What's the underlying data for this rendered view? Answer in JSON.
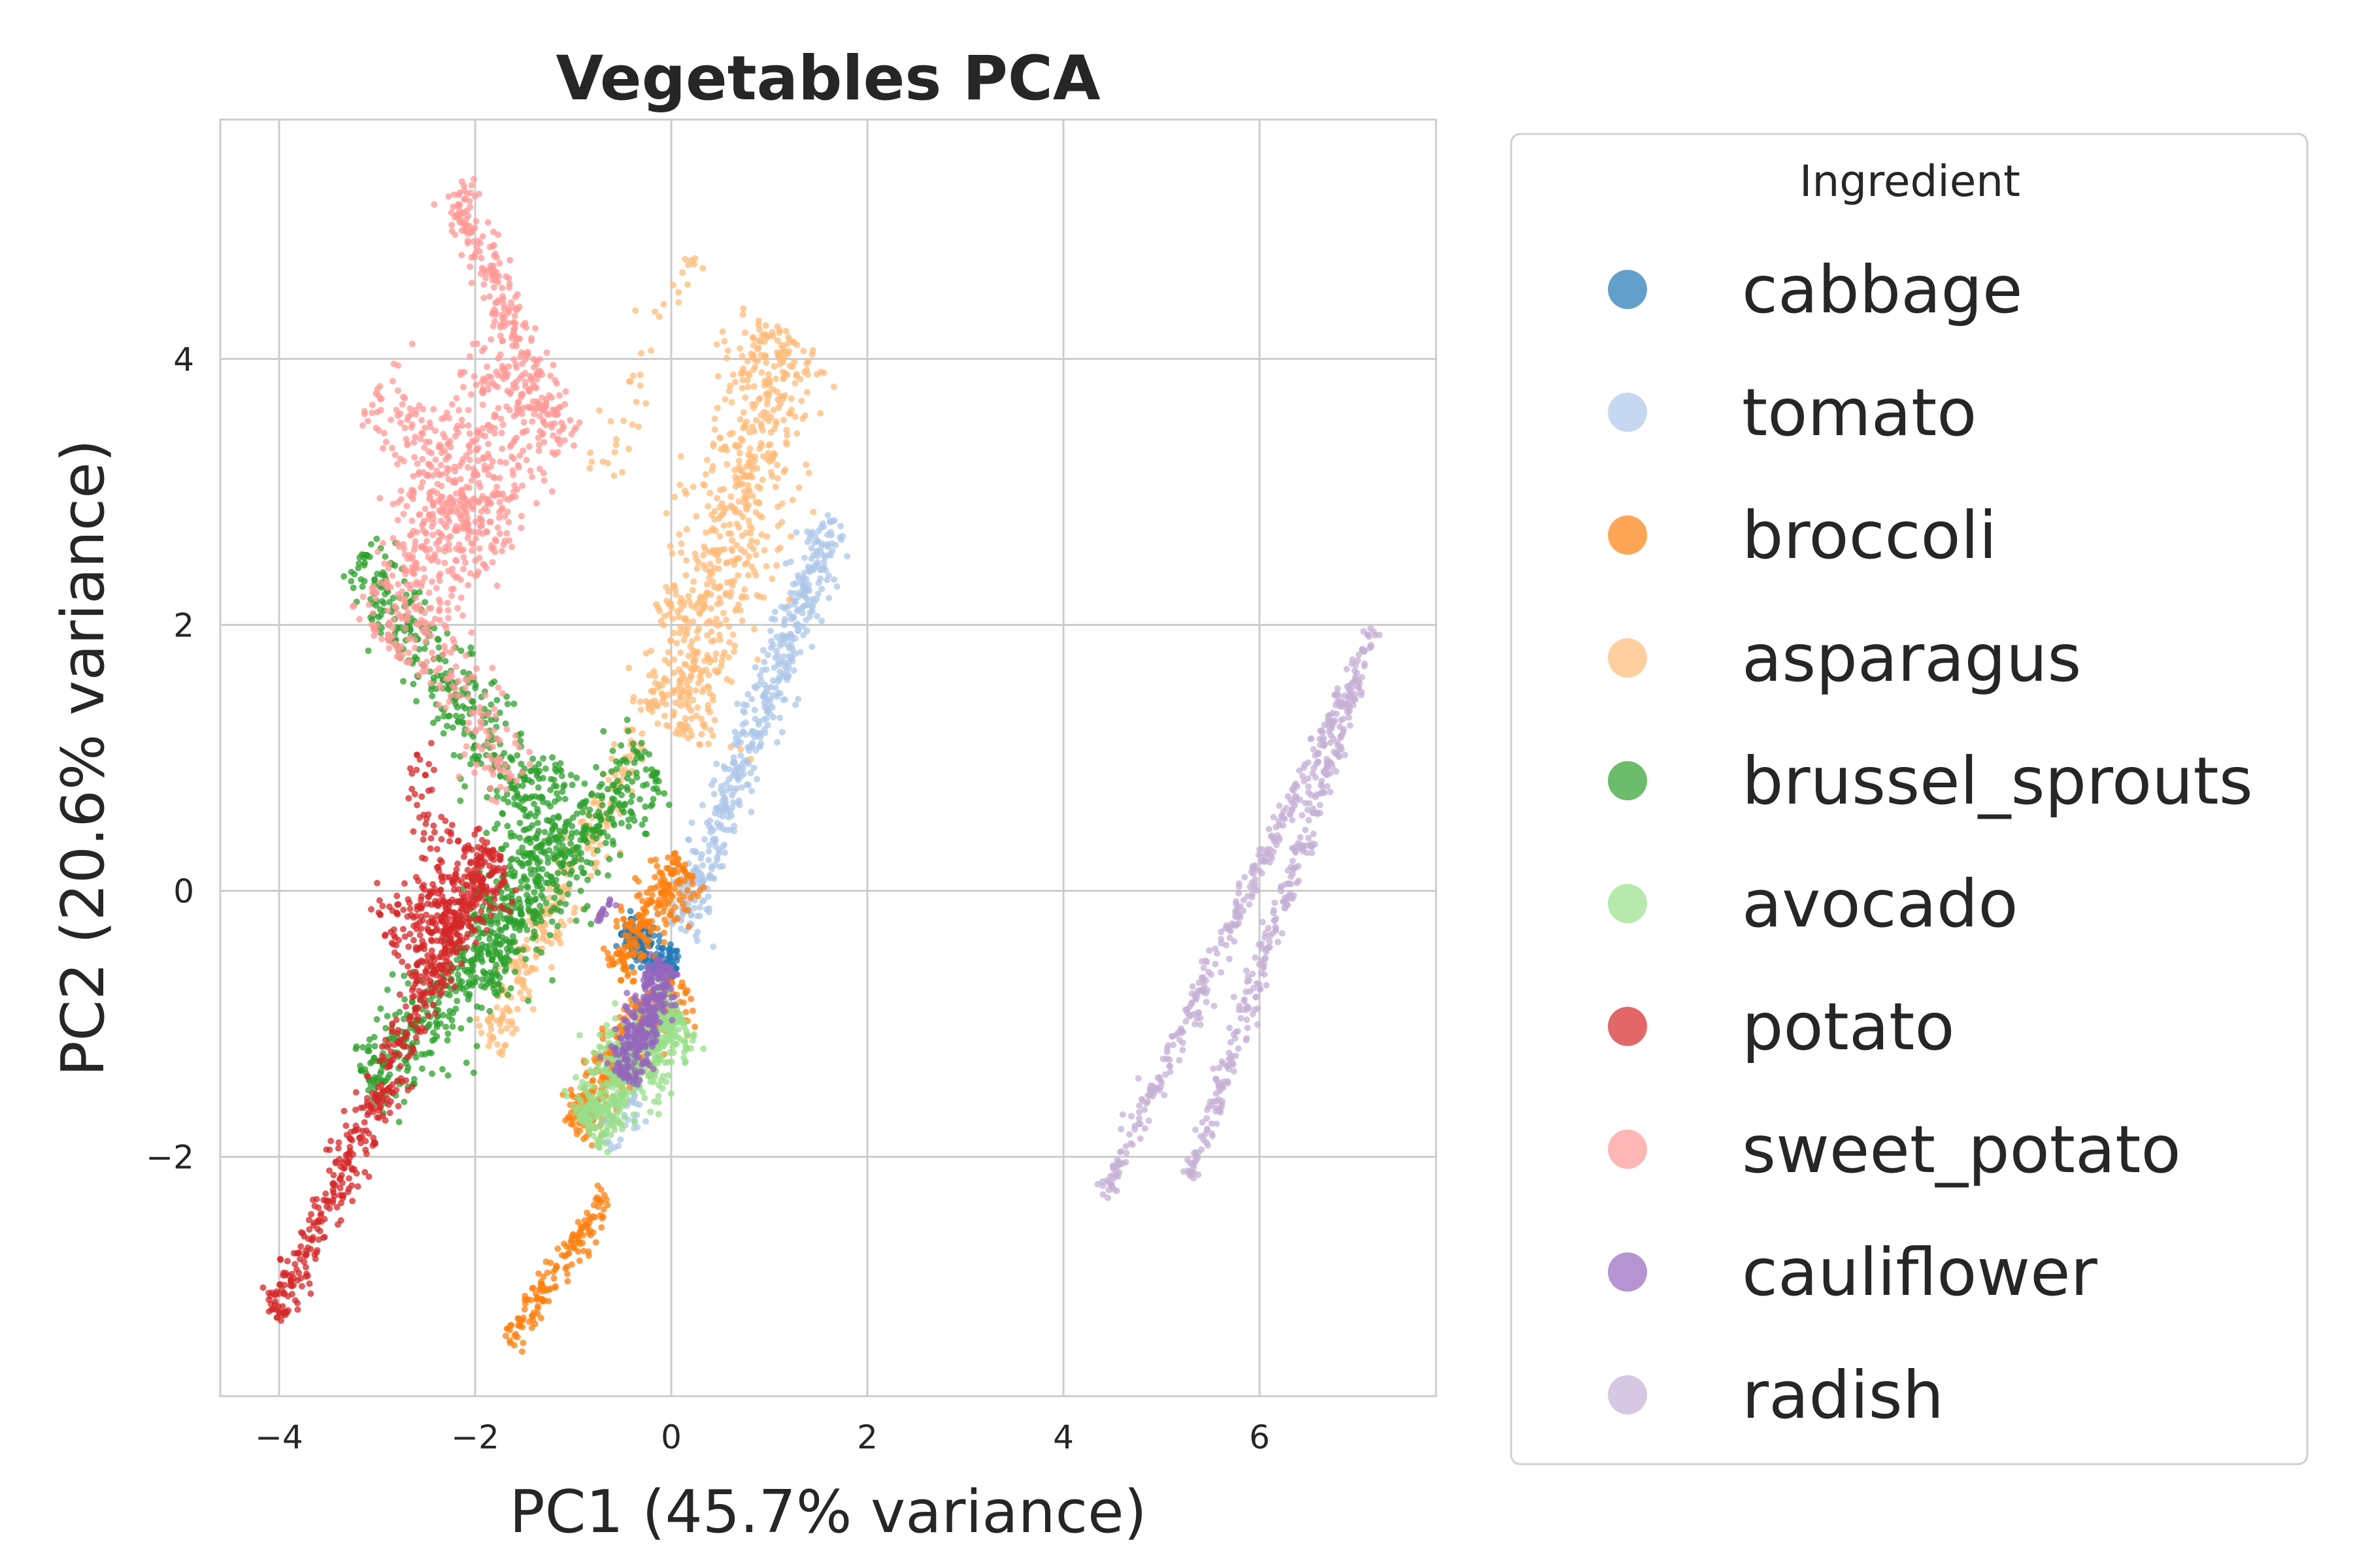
{
  "chart_data": {
    "type": "scatter",
    "title": "Vegetables PCA",
    "xlabel": "PC1 (45.7% variance)",
    "ylabel": "PC2 (20.6% variance)",
    "xlim": [
      -4.6,
      7.8
    ],
    "ylim": [
      -3.8,
      5.8
    ],
    "xticks": [
      -4,
      -2,
      0,
      2,
      4,
      6
    ],
    "yticks": [
      -2,
      0,
      2,
      4
    ],
    "xtick_labels": [
      "−4",
      "−2",
      "0",
      "2",
      "4",
      "6"
    ],
    "ytick_labels": [
      "−2",
      "0",
      "2",
      "4"
    ],
    "grid": true,
    "legend": {
      "title": "Ingredient",
      "placement": "outside-right"
    },
    "series": [
      {
        "name": "cabbage",
        "color": "#1f77b4",
        "segments": [
          {
            "from": [
              -0.5,
              -0.3
            ],
            "to": [
              0.05,
              -0.6
            ],
            "spread": 0.08,
            "n": 160
          }
        ]
      },
      {
        "name": "tomato",
        "color": "#aec7e8",
        "segments": [
          {
            "from": [
              0.1,
              -0.3
            ],
            "to": [
              1.65,
              2.8
            ],
            "spread": 0.1,
            "n": 500
          },
          {
            "from": [
              -0.7,
              -1.9
            ],
            "to": [
              -0.3,
              -1.5
            ],
            "spread": 0.08,
            "n": 40
          }
        ]
      },
      {
        "name": "broccoli",
        "color": "#ff7f0e",
        "segments": [
          {
            "from": [
              -0.6,
              -0.6
            ],
            "to": [
              0.15,
              0.2
            ],
            "spread": 0.12,
            "n": 220
          },
          {
            "from": [
              -1.0,
              -1.8
            ],
            "to": [
              -0.2,
              -0.9
            ],
            "spread": 0.12,
            "n": 240
          },
          {
            "from": [
              -0.4,
              -1.0
            ],
            "to": [
              0.2,
              -0.8
            ],
            "spread": 0.1,
            "n": 80
          },
          {
            "from": [
              -1.65,
              -3.4
            ],
            "to": [
              -0.65,
              -2.3
            ],
            "spread": 0.06,
            "n": 150
          }
        ]
      },
      {
        "name": "asparagus",
        "color": "#ffbb78",
        "segments": [
          {
            "from": [
              0.0,
              1.2
            ],
            "to": [
              1.2,
              4.2
            ],
            "spread": 0.25,
            "n": 700
          },
          {
            "from": [
              -1.9,
              -1.15
            ],
            "to": [
              -0.3,
              1.2
            ],
            "spread": 0.1,
            "n": 260
          },
          {
            "from": [
              -0.8,
              3.0
            ],
            "to": [
              0.2,
              4.8
            ],
            "spread": 0.1,
            "n": 40
          }
        ]
      },
      {
        "name": "brussel_sprouts",
        "color": "#2ca02c",
        "segments": [
          {
            "from": [
              -3.1,
              -1.5
            ],
            "to": [
              -0.2,
              1.0
            ],
            "spread": 0.18,
            "n": 620
          },
          {
            "from": [
              -3.2,
              2.5
            ],
            "to": [
              -1.0,
              0.2
            ],
            "spread": 0.16,
            "n": 380
          },
          {
            "from": [
              -1.9,
              -0.7
            ],
            "to": [
              -1.2,
              1.0
            ],
            "spread": 0.2,
            "n": 220
          }
        ]
      },
      {
        "name": "avocado",
        "color": "#98df8a",
        "segments": [
          {
            "from": [
              -0.9,
              -1.75
            ],
            "to": [
              0.1,
              -0.9
            ],
            "spread": 0.16,
            "n": 550
          }
        ]
      },
      {
        "name": "potato",
        "color": "#d62728",
        "segments": [
          {
            "from": [
              -4.05,
              -3.2
            ],
            "to": [
              -1.8,
              0.3
            ],
            "spread": 0.09,
            "n": 520
          },
          {
            "from": [
              -2.8,
              -0.5
            ],
            "to": [
              -1.8,
              0.3
            ],
            "spread": 0.2,
            "n": 260
          },
          {
            "from": [
              -2.6,
              1.1
            ],
            "to": [
              -2.3,
              -0.5
            ],
            "spread": 0.1,
            "n": 60
          }
        ]
      },
      {
        "name": "sweet_potato",
        "color": "#ff9896",
        "segments": [
          {
            "from": [
              -2.9,
              1.8
            ],
            "to": [
              -1.5,
              3.9
            ],
            "spread": 0.25,
            "n": 520
          },
          {
            "from": [
              -2.2,
              5.3
            ],
            "to": [
              -1.1,
              3.3
            ],
            "spread": 0.1,
            "n": 260
          },
          {
            "from": [
              -3.0,
              3.8
            ],
            "to": [
              -1.7,
              2.5
            ],
            "spread": 0.2,
            "n": 200
          },
          {
            "from": [
              -2.4,
              1.8
            ],
            "to": [
              -1.6,
              0.8
            ],
            "spread": 0.15,
            "n": 100
          }
        ]
      },
      {
        "name": "cauliflower",
        "color": "#9467bd",
        "segments": [
          {
            "from": [
              -0.5,
              -1.4
            ],
            "to": [
              -0.05,
              -0.55
            ],
            "spread": 0.09,
            "n": 320
          },
          {
            "from": [
              -0.75,
              -0.25
            ],
            "to": [
              -0.6,
              -0.05
            ],
            "spread": 0.03,
            "n": 15
          }
        ]
      },
      {
        "name": "radish",
        "color": "#c5b0d5",
        "segments": [
          {
            "from": [
              4.4,
              -2.3
            ],
            "to": [
              7.2,
              2.0
            ],
            "spread": 0.05,
            "n": 360
          },
          {
            "from": [
              5.3,
              -2.15
            ],
            "to": [
              7.0,
              1.6
            ],
            "spread": 0.05,
            "n": 300
          }
        ]
      }
    ]
  }
}
